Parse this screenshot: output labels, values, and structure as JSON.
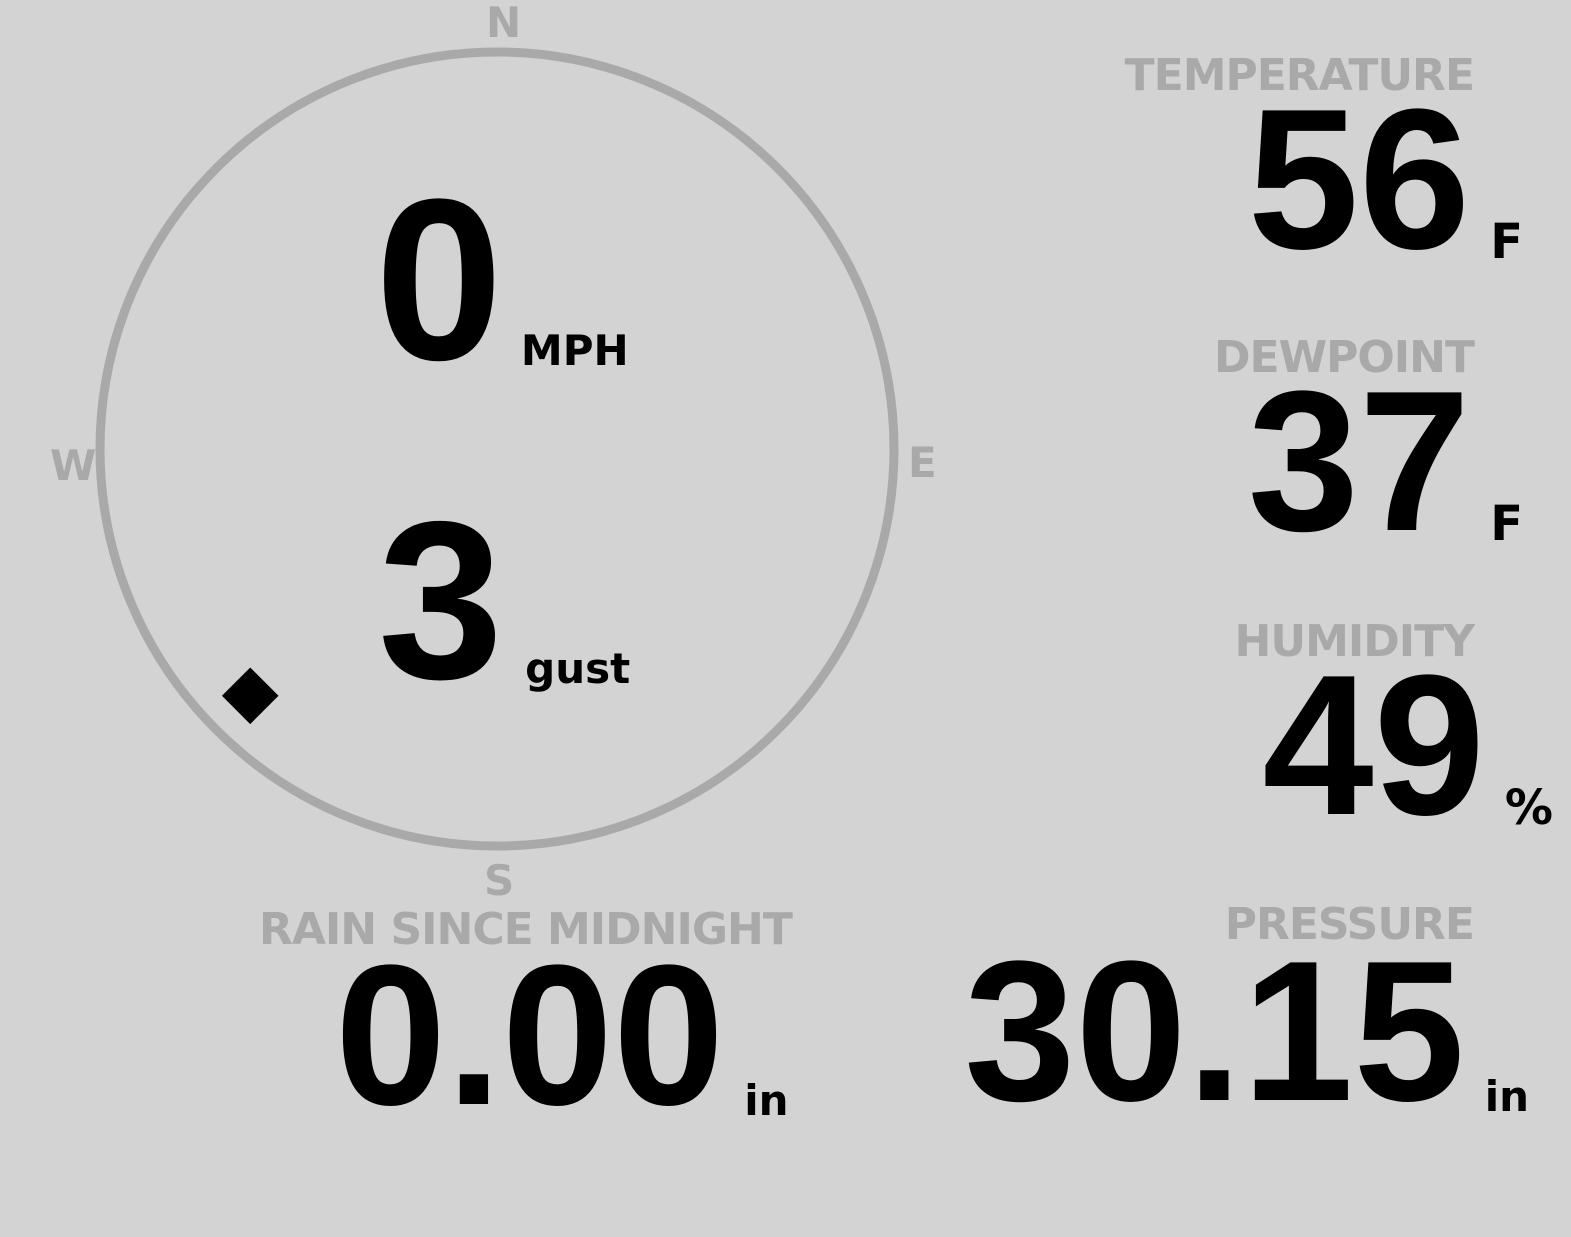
{
  "wind": {
    "speed": "0",
    "speed_unit": "MPH",
    "gust": "3",
    "gust_unit": "gust",
    "direction_degrees": 225,
    "compass": {
      "n": "N",
      "e": "E",
      "s": "S",
      "w": "W"
    }
  },
  "temperature": {
    "label": "TEMPERATURE",
    "value": "56",
    "unit": "F"
  },
  "dewpoint": {
    "label": "DEWPOINT",
    "value": "37",
    "unit": "F"
  },
  "humidity": {
    "label": "HUMIDITY",
    "value": "49",
    "unit": "%"
  },
  "rain": {
    "label": "RAIN SINCE MIDNIGHT",
    "value": "0.00",
    "unit": "in"
  },
  "pressure": {
    "label": "PRESSURE",
    "value": "30.15",
    "unit": "in"
  },
  "colors": {
    "background": "#d3d3d3",
    "muted": "#a9a9a9",
    "text": "#000000"
  }
}
